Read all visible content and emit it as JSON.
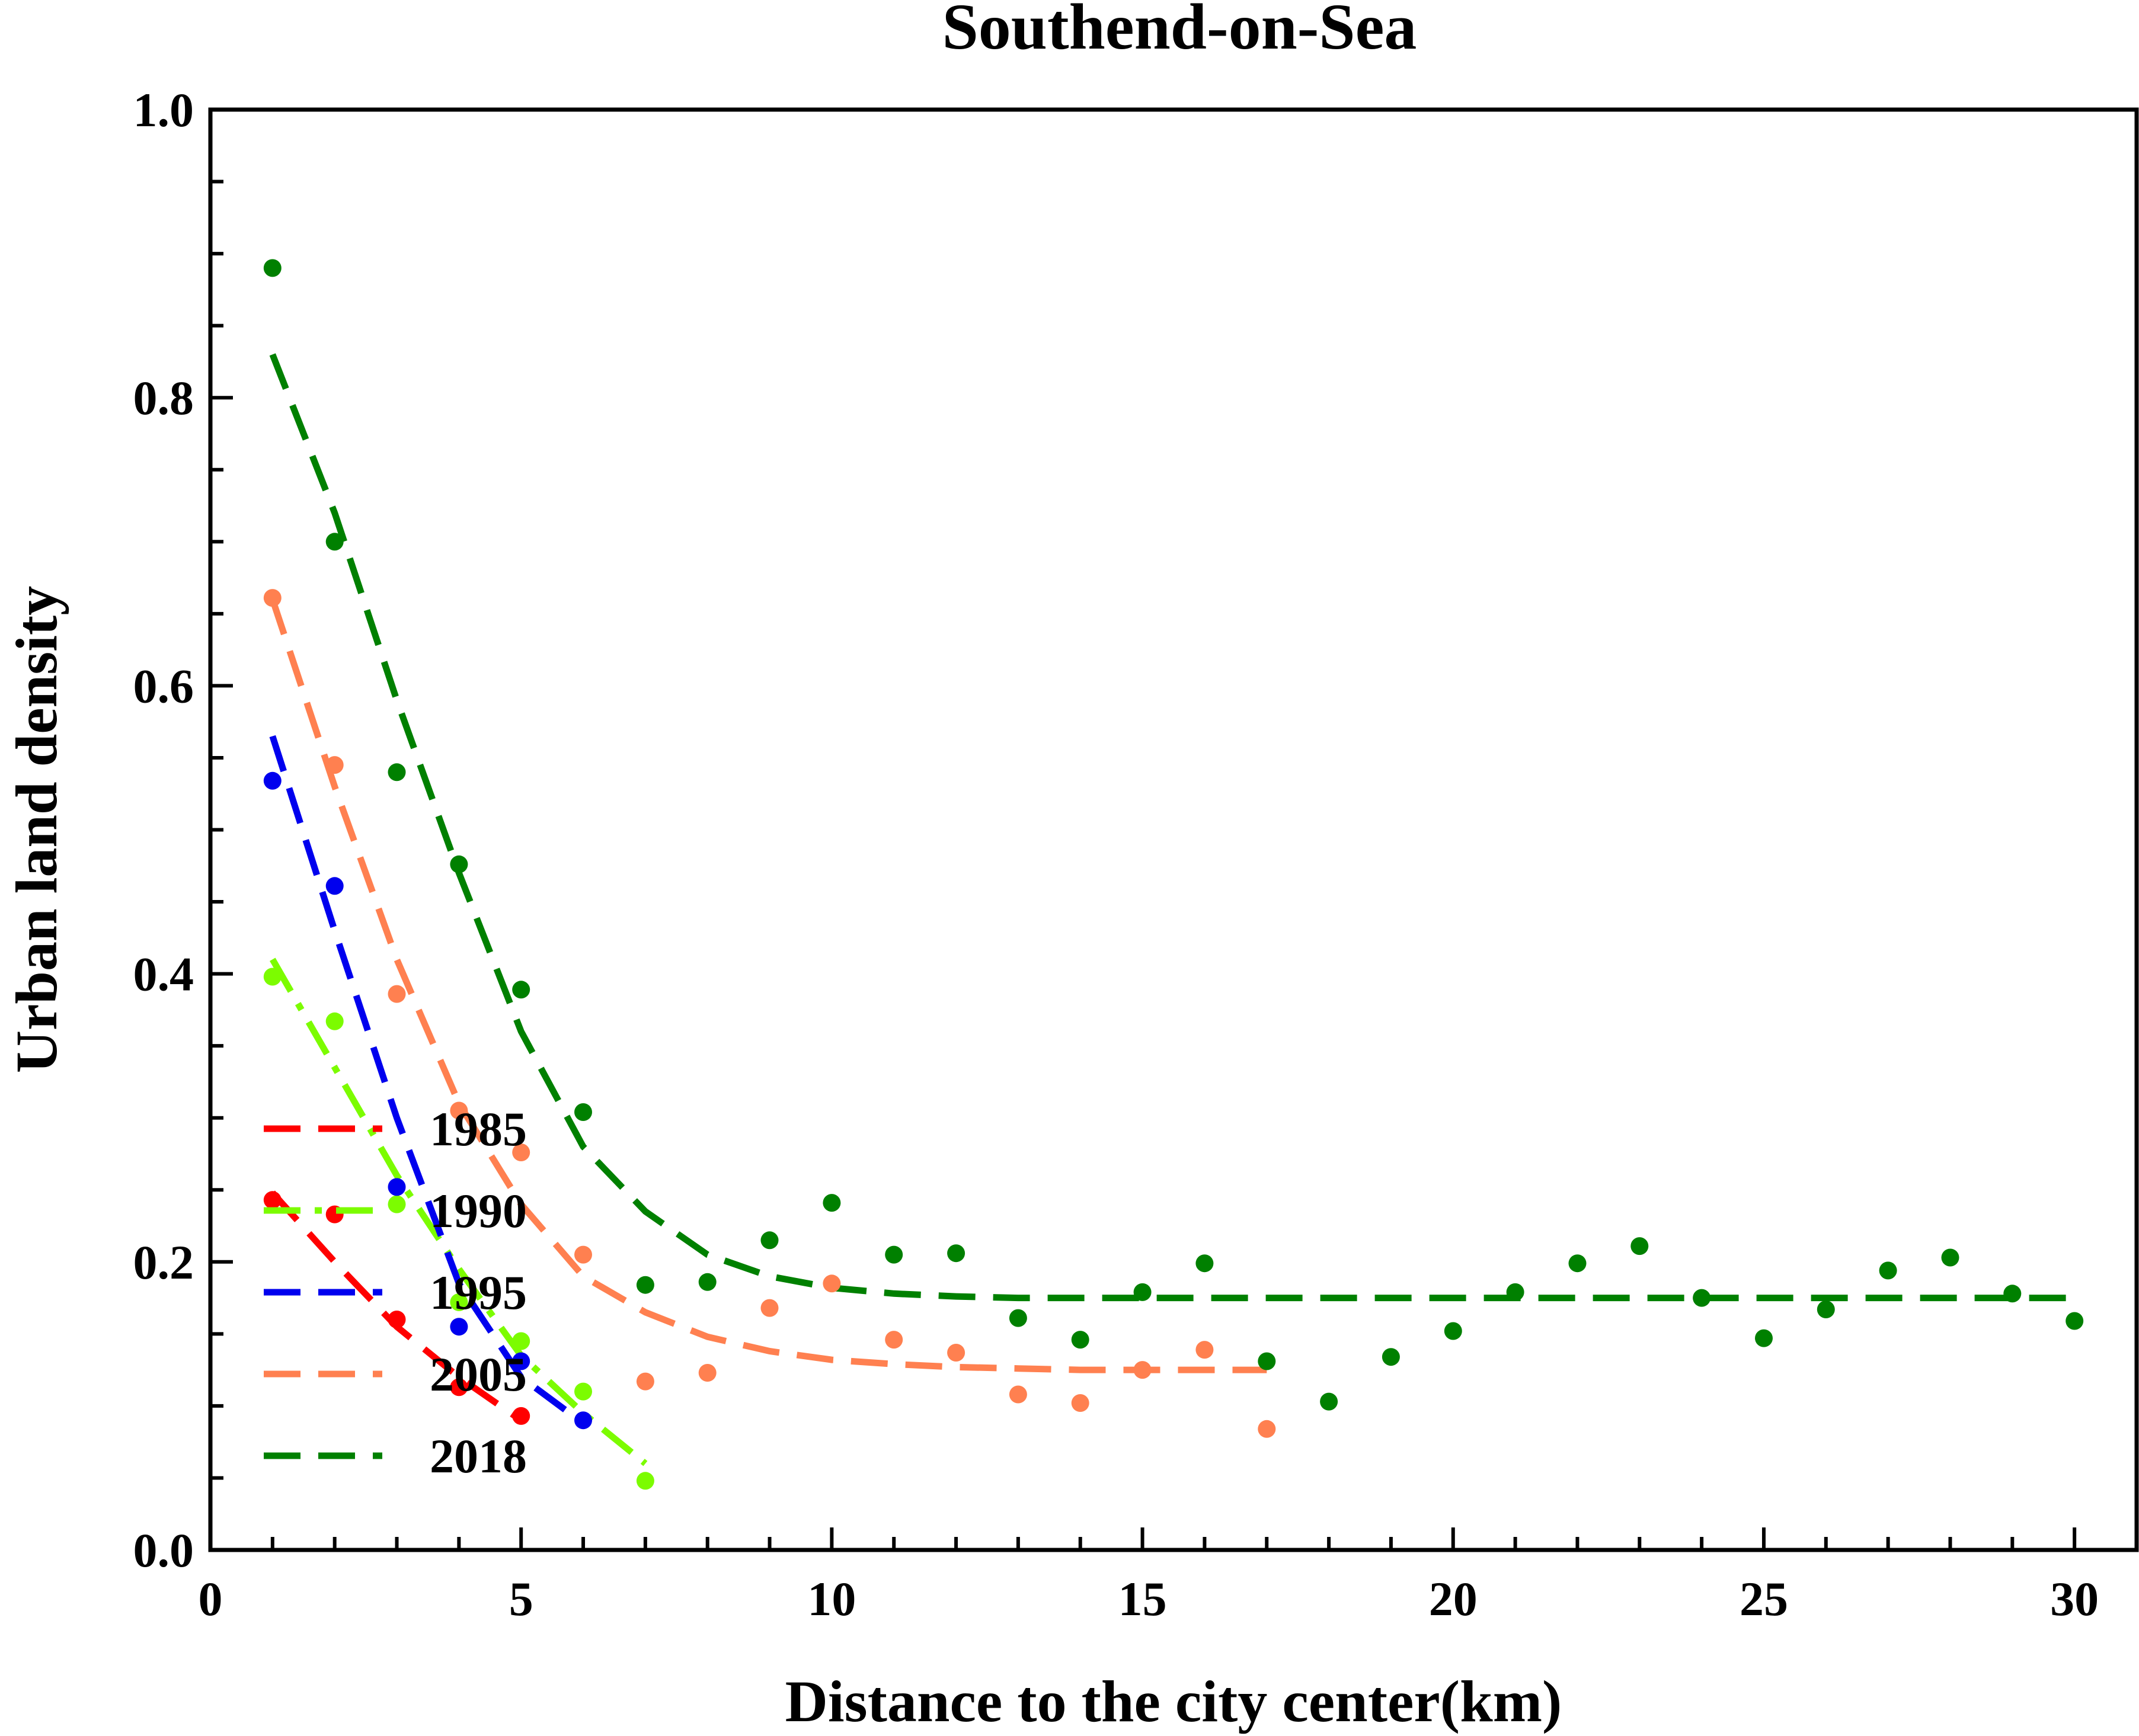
{
  "chart_data": {
    "type": "scatter",
    "title": "Southend-on-Sea",
    "xlabel": "Distance to the city center(km)",
    "ylabel": "Urban land density",
    "xlim": [
      0,
      31
    ],
    "ylim": [
      0,
      1.0
    ],
    "xticks": [
      0,
      5,
      10,
      15,
      20,
      25,
      30
    ],
    "xtick_labels": [
      "0",
      "5",
      "10",
      "15",
      "20",
      "25",
      "30"
    ],
    "yticks": [
      0.0,
      0.2,
      0.4,
      0.6,
      0.8,
      1.0
    ],
    "ytick_labels": [
      "0.0",
      "0.2",
      "0.4",
      "0.6",
      "0.8",
      "1.0"
    ],
    "grid": false,
    "legend_position": "lower-left",
    "series": [
      {
        "name": "1985",
        "color": "#ff0000",
        "dash": "long",
        "x": [
          1,
          2,
          3,
          4,
          5
        ],
        "y": [
          0.243,
          0.233,
          0.16,
          0.113,
          0.093
        ],
        "fit_x": [
          1,
          2,
          3,
          4,
          5
        ],
        "fit_y": [
          0.248,
          0.2,
          0.155,
          0.12,
          0.09
        ]
      },
      {
        "name": "1990",
        "color": "#7cfc00",
        "dash": "dashdot",
        "x": [
          1,
          2,
          3,
          4,
          5,
          6,
          7
        ],
        "y": [
          0.398,
          0.367,
          0.24,
          0.172,
          0.145,
          0.11,
          0.048
        ],
        "fit_x": [
          1,
          2,
          3,
          4,
          5,
          6,
          7
        ],
        "fit_y": [
          0.41,
          0.335,
          0.26,
          0.195,
          0.135,
          0.095,
          0.06
        ]
      },
      {
        "name": "1995",
        "color": "#0000ee",
        "dash": "long",
        "x": [
          1,
          2,
          3,
          4,
          5,
          6
        ],
        "y": [
          0.534,
          0.461,
          0.252,
          0.155,
          0.131,
          0.09
        ],
        "fit_x": [
          1,
          2,
          3,
          4,
          5,
          6
        ],
        "fit_y": [
          0.565,
          0.43,
          0.3,
          0.185,
          0.12,
          0.088
        ]
      },
      {
        "name": "2005",
        "color": "#ff8050",
        "dash": "long",
        "x": [
          1,
          2,
          3,
          4,
          5,
          6,
          7,
          8,
          9,
          10,
          11,
          12,
          13,
          14,
          15,
          16,
          17
        ],
        "y": [
          0.661,
          0.545,
          0.386,
          0.305,
          0.276,
          0.205,
          0.117,
          0.123,
          0.168,
          0.185,
          0.146,
          0.137,
          0.108,
          0.102,
          0.125,
          0.139,
          0.084
        ],
        "fit_x": [
          1,
          2,
          3,
          4,
          5,
          6,
          7,
          8,
          9,
          10,
          11,
          12,
          13,
          14,
          15,
          16,
          17
        ],
        "fit_y": [
          0.66,
          0.53,
          0.41,
          0.31,
          0.24,
          0.19,
          0.165,
          0.148,
          0.138,
          0.132,
          0.129,
          0.127,
          0.126,
          0.125,
          0.125,
          0.125,
          0.125
        ]
      },
      {
        "name": "2018",
        "color": "#008000",
        "dash": "long",
        "x": [
          1,
          2,
          3,
          4,
          5,
          6,
          7,
          8,
          9,
          10,
          11,
          12,
          13,
          14,
          15,
          16,
          17,
          18,
          19,
          20,
          21,
          22,
          23,
          24,
          25,
          26,
          27,
          28,
          29,
          30
        ],
        "y": [
          0.89,
          0.7,
          0.54,
          0.476,
          0.389,
          0.304,
          0.184,
          0.186,
          0.215,
          0.241,
          0.205,
          0.206,
          0.161,
          0.146,
          0.179,
          0.199,
          0.131,
          0.103,
          0.134,
          0.152,
          0.179,
          0.199,
          0.211,
          0.175,
          0.147,
          0.167,
          0.194,
          0.203,
          0.178,
          0.159
        ],
        "fit_x": [
          1,
          2,
          3,
          4,
          5,
          6,
          7,
          8,
          9,
          10,
          11,
          12,
          13,
          14,
          15,
          16,
          17,
          18,
          19,
          20,
          21,
          22,
          23,
          24,
          25,
          26,
          27,
          28,
          29,
          30
        ],
        "fit_y": [
          0.83,
          0.72,
          0.59,
          0.47,
          0.36,
          0.28,
          0.235,
          0.205,
          0.19,
          0.182,
          0.178,
          0.176,
          0.175,
          0.175,
          0.175,
          0.175,
          0.175,
          0.175,
          0.175,
          0.175,
          0.175,
          0.175,
          0.175,
          0.175,
          0.175,
          0.175,
          0.175,
          0.175,
          0.175,
          0.175
        ]
      }
    ]
  }
}
